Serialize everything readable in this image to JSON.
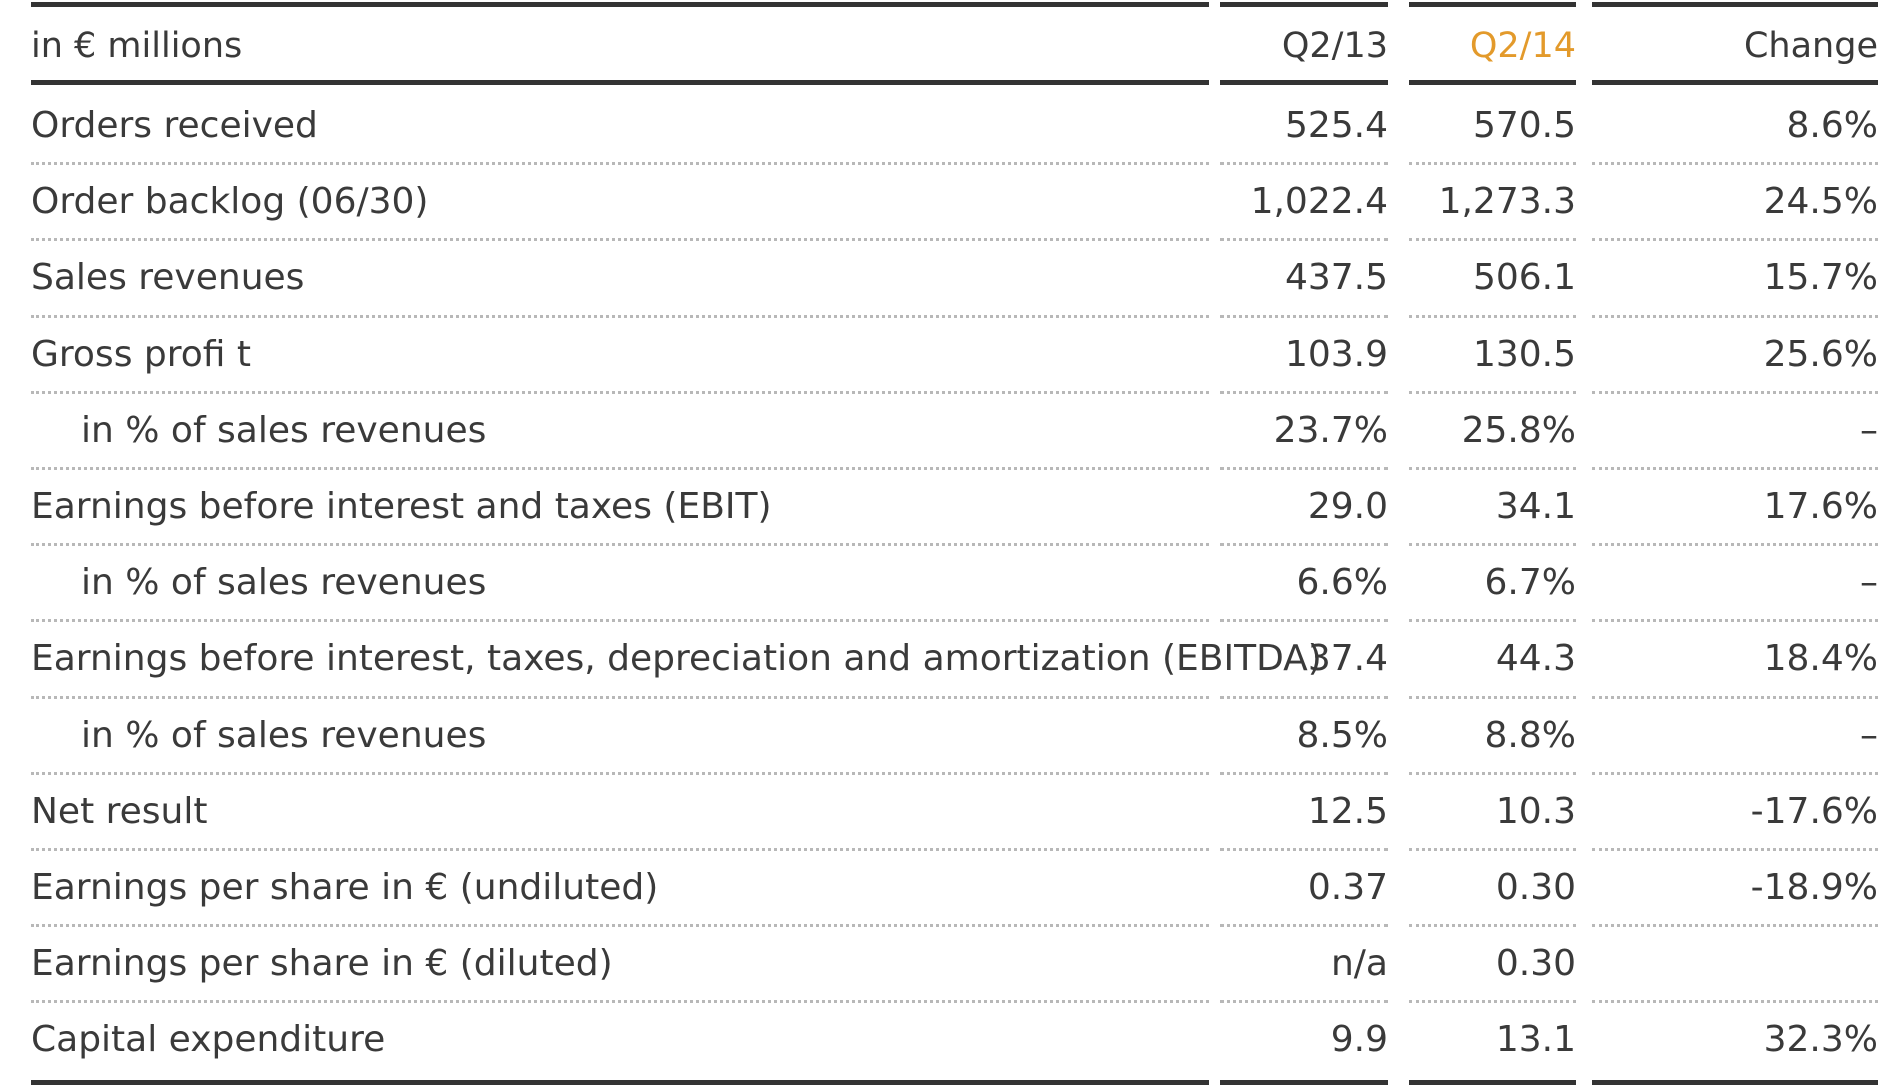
{
  "table": {
    "header": {
      "label": "in € millions",
      "q213": "Q2/13",
      "q214": "Q2/14",
      "change": "Change"
    },
    "rows": [
      {
        "label": "Orders received",
        "q213": "525.4",
        "q214": "570.5",
        "change": "8.6%"
      },
      {
        "label": "Order backlog (06/30)",
        "q213": "1,022.4",
        "q214": "1,273.3",
        "change": "24.5%"
      },
      {
        "label": "Sales revenues",
        "q213": "437.5",
        "q214": "506.1",
        "change": "15.7%"
      },
      {
        "label": "Gross profi t",
        "q213": "103.9",
        "q214": "130.5",
        "change": "25.6%"
      },
      {
        "label": "in % of sales revenues",
        "q213": "23.7%",
        "q214": "25.8%",
        "change": "–"
      },
      {
        "label": "Earnings before interest and taxes (EBIT)",
        "q213": "29.0",
        "q214": "34.1",
        "change": "17.6%"
      },
      {
        "label": "in % of sales revenues",
        "q213": "6.6%",
        "q214": "6.7%",
        "change": "–"
      },
      {
        "label": "Earnings before interest, taxes, depreciation and amortization (EBITDA)",
        "q213": "37.4",
        "q214": "44.3",
        "change": "18.4%"
      },
      {
        "label": "in % of sales revenues",
        "q213": "8.5%",
        "q214": "8.8%",
        "change": "–"
      },
      {
        "label": "Net result",
        "q213": "12.5",
        "q214": "10.3",
        "change": "-17.6%"
      },
      {
        "label": "Earnings per share in € (undiluted)",
        "q213": "0.37",
        "q214": "0.30",
        "change": "-18.9%"
      },
      {
        "label": "Earnings per share in € (diluted)",
        "q213": "n/a",
        "q214": "0.30",
        "change": ""
      },
      {
        "label": "Capital expenditure",
        "q213": "9.9",
        "q214": "13.1",
        "change": "32.3%"
      }
    ]
  },
  "colors": {
    "highlight_column_header": "#e39a2b",
    "text": "#3a3a3a",
    "rule": "#333333"
  }
}
